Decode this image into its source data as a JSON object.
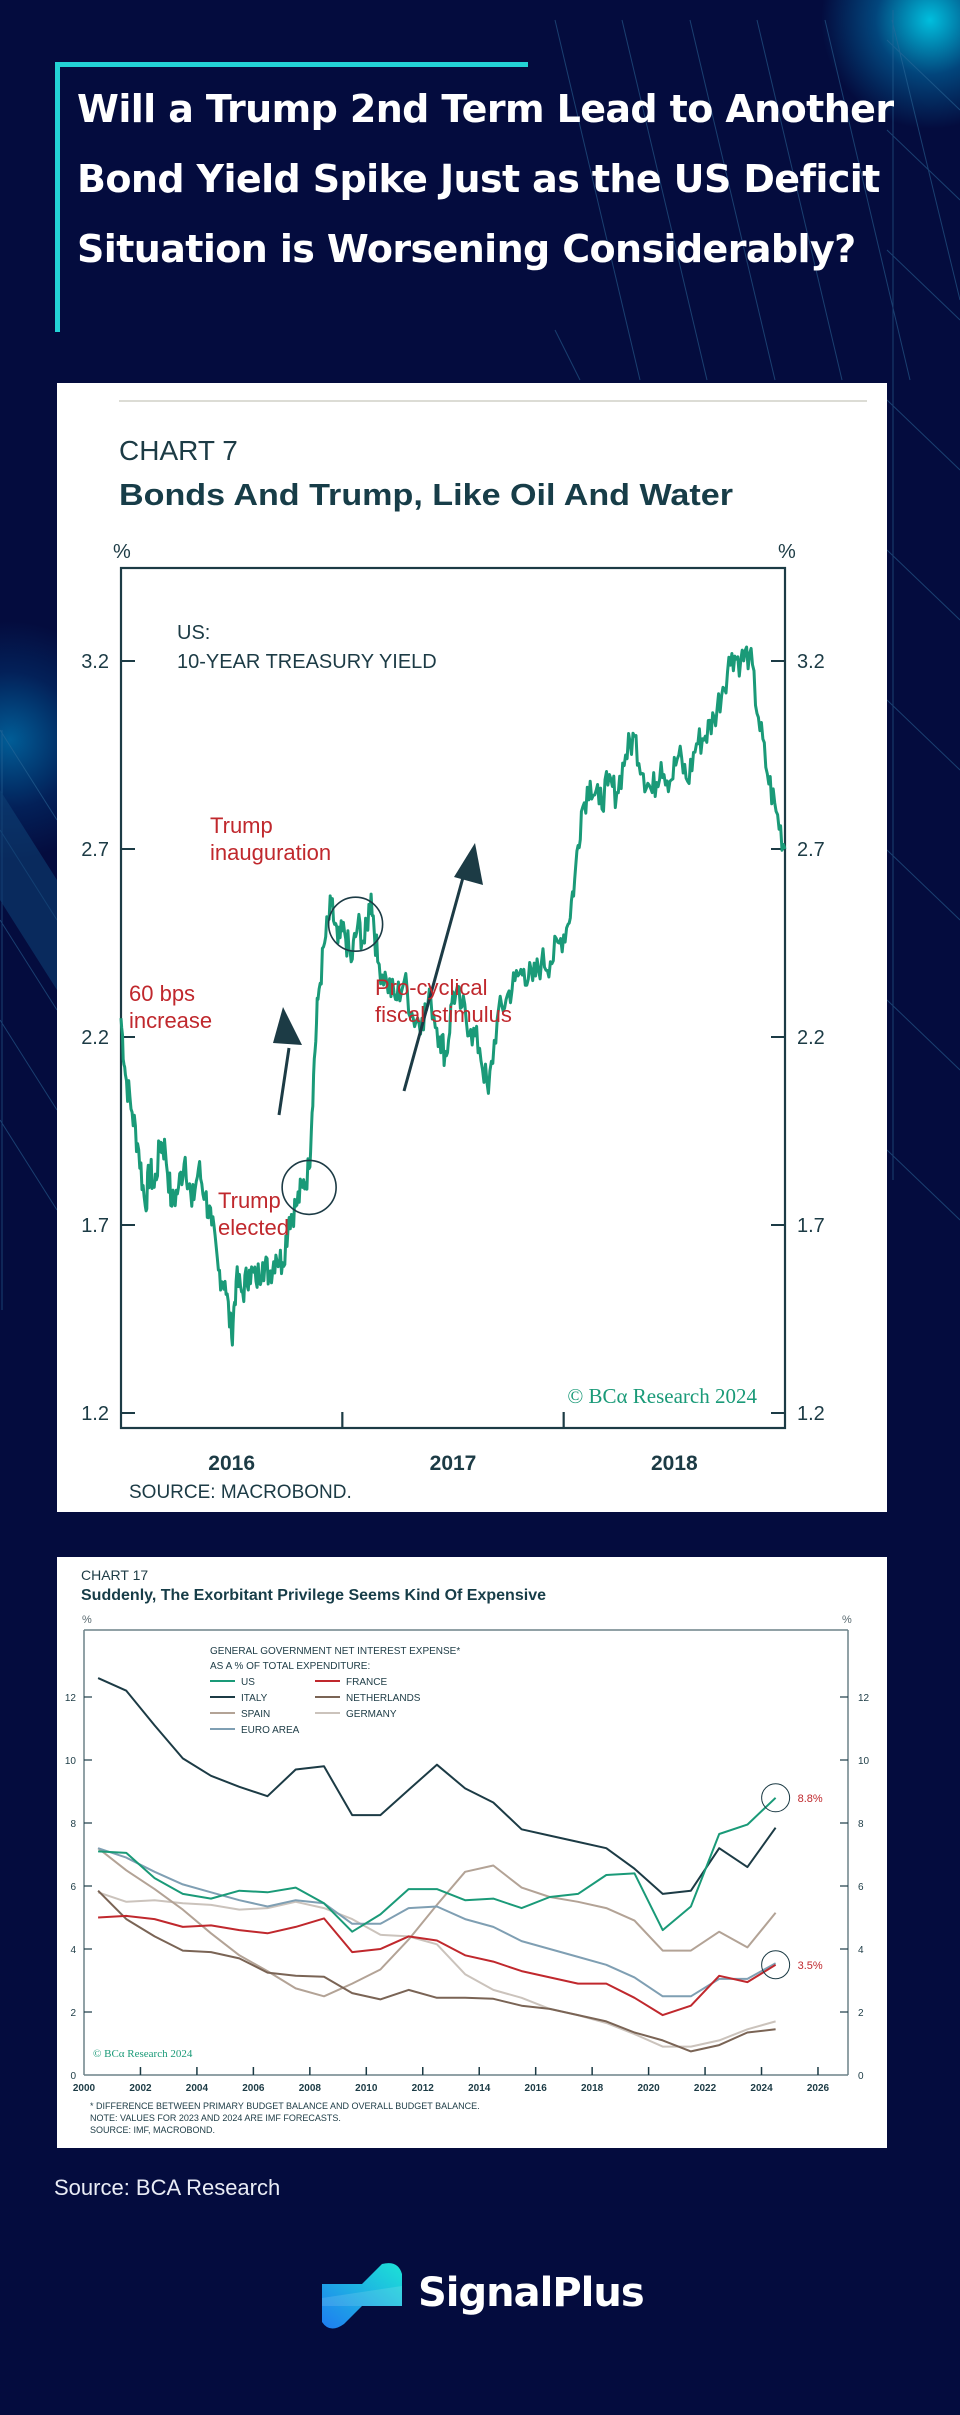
{
  "headline": "Will a Trump 2nd Term Lead to Another Bond Yield Spike Just as the US Deficit Situation is Worsening Considerably?",
  "footer": {
    "source": "Source:  BCA Research",
    "brand": "SignalPlus"
  },
  "colors": {
    "background": "#040c3e",
    "accent": "#23d3d6",
    "chart_green": "#1a9a78",
    "annotation_red": "#c0282d",
    "axis_dark": "#1c3b45"
  },
  "chart_data": [
    {
      "type": "line",
      "label": "CHART 7",
      "title": "Bonds And Trump, Like Oil And Water",
      "ylabel_left": "%",
      "ylabel_right": "%",
      "series_label_line1": "US:",
      "series_label_line2": "10-YEAR TREASURY YIELD",
      "ylim": [
        1.2,
        3.35
      ],
      "yticks": [
        "3.2",
        "2.7",
        "2.2",
        "1.7",
        "1.2"
      ],
      "ytick_values": [
        3.2,
        2.7,
        2.2,
        1.7,
        1.2
      ],
      "xlim": [
        2016.0,
        2019.0
      ],
      "xtick_labels": [
        "2016",
        "2017",
        "2018"
      ],
      "xtick_marks": [
        2017.0,
        2018.0
      ],
      "series": [
        {
          "name": "US 10-Year Treasury Yield",
          "x": [
            2016.0,
            2016.02,
            2016.05,
            2016.08,
            2016.11,
            2016.13,
            2016.15,
            2016.18,
            2016.2,
            2016.23,
            2016.26,
            2016.29,
            2016.32,
            2016.35,
            2016.38,
            2016.41,
            2016.44,
            2016.47,
            2016.5,
            2016.52,
            2016.55,
            2016.58,
            2016.61,
            2016.64,
            2016.67,
            2016.7,
            2016.73,
            2016.76,
            2016.79,
            2016.82,
            2016.85,
            2016.87,
            2016.89,
            2016.92,
            2016.95,
            2016.98,
            2017.01,
            2017.04,
            2017.07,
            2017.1,
            2017.13,
            2017.16,
            2017.2,
            2017.24,
            2017.28,
            2017.32,
            2017.36,
            2017.4,
            2017.44,
            2017.47,
            2017.5,
            2017.54,
            2017.58,
            2017.62,
            2017.66,
            2017.7,
            2017.74,
            2017.78,
            2017.82,
            2017.86,
            2017.9,
            2017.94,
            2017.98,
            2018.02,
            2018.05,
            2018.08,
            2018.12,
            2018.16,
            2018.2,
            2018.24,
            2018.28,
            2018.32,
            2018.36,
            2018.4,
            2018.44,
            2018.48,
            2018.52,
            2018.56,
            2018.6,
            2018.64,
            2018.68,
            2018.72,
            2018.76,
            2018.8,
            2018.84,
            2018.88,
            2018.92,
            2018.96,
            2019.0
          ],
          "values": [
            2.25,
            2.1,
            2.0,
            1.9,
            1.75,
            1.85,
            1.8,
            1.92,
            1.9,
            1.75,
            1.8,
            1.88,
            1.75,
            1.85,
            1.78,
            1.7,
            1.58,
            1.55,
            1.4,
            1.55,
            1.52,
            1.58,
            1.55,
            1.6,
            1.57,
            1.62,
            1.6,
            1.72,
            1.75,
            1.8,
            1.85,
            2.1,
            2.3,
            2.45,
            2.55,
            2.45,
            2.48,
            2.4,
            2.5,
            2.45,
            2.58,
            2.4,
            2.35,
            2.3,
            2.35,
            2.25,
            2.25,
            2.3,
            2.2,
            2.15,
            2.32,
            2.28,
            2.22,
            2.17,
            2.05,
            2.25,
            2.3,
            2.35,
            2.38,
            2.35,
            2.4,
            2.4,
            2.45,
            2.5,
            2.62,
            2.8,
            2.88,
            2.82,
            2.87,
            2.85,
            2.95,
            3.0,
            2.9,
            2.85,
            2.93,
            2.88,
            2.95,
            2.88,
            2.98,
            3.0,
            3.05,
            3.13,
            3.22,
            3.2,
            3.22,
            3.05,
            2.9,
            2.8,
            2.7
          ]
        }
      ],
      "annotations": [
        {
          "text_line1": "Trump",
          "text_line2": "inauguration",
          "x": 2017.05,
          "y": 2.52
        },
        {
          "text_line1": "60 bps",
          "text_line2": "increase",
          "x": 2016.85,
          "y": 2.15
        },
        {
          "text_line1": "Trump",
          "text_line2": "elected",
          "x": 2016.85,
          "y": 1.8
        },
        {
          "text_line1": "Pro-cyclical",
          "text_line2": "fiscal stimulus",
          "x": 2017.6,
          "y": 2.0
        }
      ],
      "watermark": "© BCα Research 2024",
      "source": "SOURCE: MACROBOND."
    },
    {
      "type": "line",
      "label": "CHART 17",
      "title": "Suddenly, The Exorbitant Privilege Seems Kind Of Expensive",
      "ylabel_left": "%",
      "ylabel_right": "%",
      "legend_title_line1": "GENERAL GOVERNMENT NET INTEREST EXPENSE*",
      "legend_title_line2": "AS A % OF TOTAL EXPENDITURE:",
      "ylim": [
        0,
        13.5
      ],
      "yticks": [
        "12",
        "10",
        "8",
        "6",
        "4",
        "2",
        "0"
      ],
      "ytick_values": [
        12,
        10,
        8,
        6,
        4,
        2,
        0
      ],
      "xlim": [
        2000,
        2027
      ],
      "xtick_labels": [
        "2000",
        "2002",
        "2004",
        "2006",
        "2008",
        "2010",
        "2012",
        "2014",
        "2016",
        "2018",
        "2020",
        "2022",
        "2024",
        "2026"
      ],
      "xtick_values": [
        2000,
        2002,
        2004,
        2006,
        2008,
        2010,
        2012,
        2014,
        2016,
        2018,
        2020,
        2022,
        2024,
        2026
      ],
      "x": [
        2000.5,
        2001.5,
        2002.5,
        2003.5,
        2004.5,
        2005.5,
        2006.5,
        2007.5,
        2008.5,
        2009.5,
        2010.5,
        2011.5,
        2012.5,
        2013.5,
        2014.5,
        2015.5,
        2016.5,
        2017.5,
        2018.5,
        2019.5,
        2020.5,
        2021.5,
        2022.5,
        2023.5,
        2024.5
      ],
      "series": [
        {
          "name": "US",
          "color": "#1a9a78",
          "values": [
            7.1,
            7.05,
            6.25,
            5.75,
            5.6,
            5.85,
            5.8,
            5.95,
            5.45,
            4.55,
            5.1,
            5.9,
            5.9,
            5.55,
            5.6,
            5.3,
            5.65,
            5.75,
            6.35,
            6.4,
            4.6,
            5.35,
            7.65,
            7.95,
            8.8
          ]
        },
        {
          "name": "ITALY",
          "color": "#1c3b45",
          "values": [
            12.6,
            12.2,
            11.1,
            10.05,
            9.5,
            9.15,
            8.85,
            9.7,
            9.8,
            8.25,
            8.25,
            9.05,
            9.85,
            9.1,
            8.65,
            7.8,
            7.6,
            7.4,
            7.2,
            6.55,
            5.75,
            5.85,
            7.2,
            6.6,
            7.85
          ]
        },
        {
          "name": "FRANCE",
          "color": "#c0282d",
          "values": [
            5.0,
            5.05,
            4.95,
            4.7,
            4.75,
            4.6,
            4.5,
            4.7,
            4.97,
            3.9,
            4.0,
            4.4,
            4.27,
            3.8,
            3.6,
            3.3,
            3.1,
            2.9,
            2.9,
            2.45,
            1.9,
            2.2,
            3.15,
            2.95,
            3.5
          ]
        },
        {
          "name": "NETHERLANDS",
          "color": "#7a6455",
          "values": [
            5.85,
            4.95,
            4.4,
            3.95,
            3.9,
            3.7,
            3.25,
            3.15,
            3.12,
            2.6,
            2.4,
            2.7,
            2.45,
            2.45,
            2.42,
            2.2,
            2.1,
            1.9,
            1.7,
            1.35,
            1.1,
            0.75,
            0.95,
            1.35,
            1.45
          ]
        },
        {
          "name": "SPAIN",
          "color": "#b3a396",
          "values": [
            7.2,
            6.5,
            5.9,
            5.25,
            4.5,
            3.8,
            3.3,
            2.75,
            2.5,
            2.9,
            3.35,
            4.3,
            5.4,
            6.45,
            6.65,
            5.95,
            5.65,
            5.5,
            5.3,
            4.9,
            3.95,
            3.95,
            4.55,
            4.05,
            5.15
          ]
        },
        {
          "name": "GERMANY",
          "color": "#cbc3bc",
          "values": [
            5.8,
            5.5,
            5.55,
            5.45,
            5.4,
            5.25,
            5.3,
            5.5,
            5.3,
            4.95,
            4.45,
            4.4,
            4.15,
            3.2,
            2.7,
            2.45,
            2.1,
            1.9,
            1.65,
            1.3,
            0.9,
            0.9,
            1.1,
            1.45,
            1.7
          ]
        },
        {
          "name": "EURO AREA",
          "color": "#7f9fb3",
          "values": [
            7.2,
            6.9,
            6.45,
            6.05,
            5.8,
            5.55,
            5.35,
            5.55,
            5.45,
            4.8,
            4.8,
            5.3,
            5.35,
            4.95,
            4.7,
            4.25,
            4.0,
            3.75,
            3.5,
            3.1,
            2.5,
            2.5,
            3.05,
            3.05,
            3.55
          ]
        }
      ],
      "callouts": [
        {
          "text": "8.8%",
          "series": "US",
          "x": 2024.5,
          "y": 8.8
        },
        {
          "text": "3.5%",
          "series": "FRANCE",
          "x": 2024.5,
          "y": 3.5
        }
      ],
      "watermark": "© BCα Research 2024",
      "footnote_line1": "* DIFFERENCE BETWEEN PRIMARY BUDGET BALANCE AND OVERALL BUDGET BALANCE.",
      "footnote_line2": "NOTE: VALUES FOR 2023 AND 2024 ARE IMF FORECASTS.",
      "footnote_line3": "SOURCE: IMF, MACROBOND."
    }
  ]
}
